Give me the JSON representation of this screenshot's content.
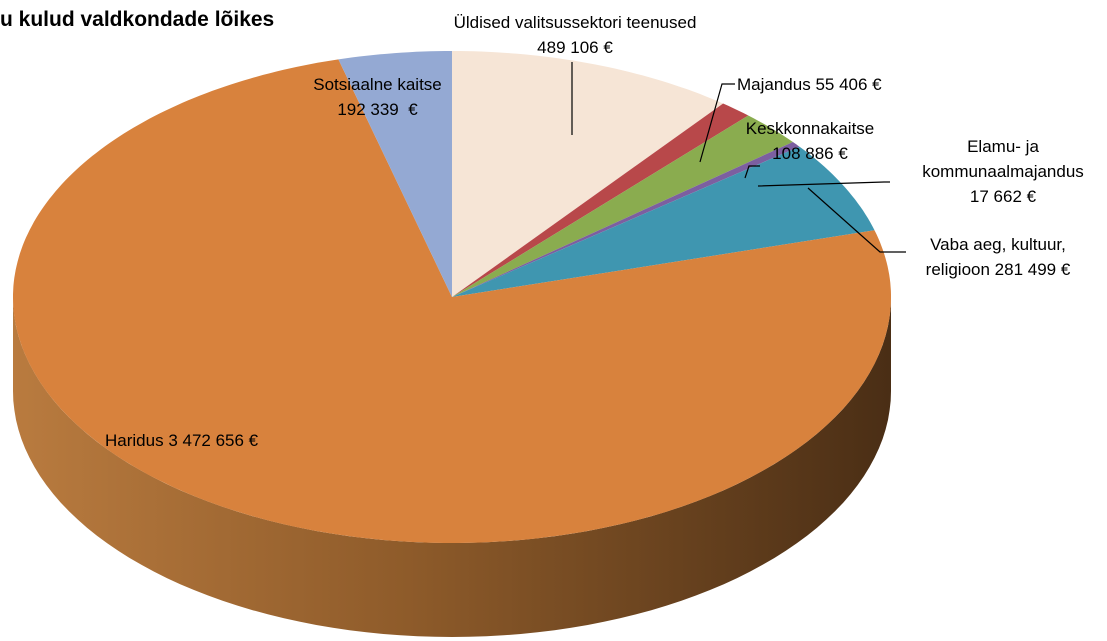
{
  "chart_data": {
    "type": "pie",
    "title": "u kulud valdkondade lõikes",
    "categories": [
      "Üldised valitsussektori teenused",
      "Majandus",
      "Keskkonnakaitse",
      "Elamu- ja kommunaalmajandus",
      "Vaba aeg, kultuur, religioon",
      "Haridus",
      "Sotsiaalne kaitse"
    ],
    "values": [
      489106,
      55406,
      108886,
      17662,
      281499,
      3472656,
      192339
    ],
    "value_labels": [
      "489 106 €",
      "55 406 €",
      "108 886 €",
      "17 662 €",
      "281 499 €",
      "3 472 656 €",
      "192 339  €"
    ],
    "colors": [
      "#f6e5d6",
      "#b8484a",
      "#8aac4f",
      "#7c5fa0",
      "#3f96b0",
      "#d8823d",
      "#94a9d3"
    ]
  }
}
